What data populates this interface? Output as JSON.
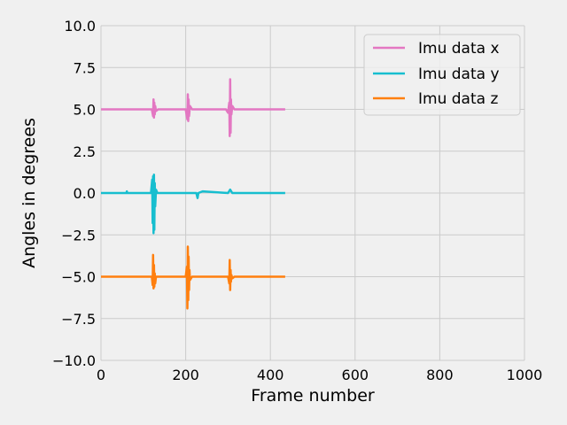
{
  "chart_data": {
    "type": "line",
    "xlabel": "Frame number",
    "ylabel": "Angles in degrees",
    "xlim": [
      0,
      1000
    ],
    "ylim": [
      -10,
      10
    ],
    "xticks": [
      0,
      200,
      400,
      600,
      800,
      1000
    ],
    "yticks": [
      -10.0,
      -7.5,
      -5.0,
      -2.5,
      0.0,
      2.5,
      5.0,
      7.5,
      10.0
    ],
    "xtick_labels": [
      "0",
      "200",
      "400",
      "600",
      "800",
      "1000"
    ],
    "ytick_labels": [
      "−10.0",
      "−7.5",
      "−5.0",
      "−2.5",
      "0.0",
      "2.5",
      "5.0",
      "7.5",
      "10.0"
    ],
    "grid": true,
    "legend_position": "top-right",
    "series": [
      {
        "name": "Imu data x",
        "color": "#e377c2",
        "x": [
          0,
          120,
          123,
          124,
          125,
          126,
          127,
          128,
          130,
          135,
          150,
          200,
          204,
          205,
          206,
          207,
          208,
          210,
          215,
          250,
          295,
          300,
          303,
          304,
          305,
          306,
          307,
          308,
          310,
          315,
          380,
          435
        ],
        "y": [
          5.0,
          5.0,
          4.6,
          5.6,
          4.5,
          5.4,
          4.7,
          5.2,
          4.9,
          5.0,
          5.0,
          5.0,
          4.4,
          5.9,
          4.3,
          5.6,
          4.6,
          5.2,
          5.0,
          5.0,
          5.0,
          4.8,
          5.4,
          3.4,
          6.8,
          3.6,
          5.6,
          4.7,
          5.2,
          5.0,
          5.0,
          5.0
        ]
      },
      {
        "name": "Imu data y",
        "color": "#17becf",
        "x": [
          0,
          60,
          61,
          62,
          100,
          118,
          121,
          122,
          123,
          124,
          125,
          126,
          127,
          128,
          130,
          133,
          140,
          200,
          225,
          228,
          230,
          240,
          300,
          305,
          310,
          435
        ],
        "y": [
          0.0,
          0.0,
          0.1,
          0.0,
          0.0,
          0.0,
          0.8,
          -1.8,
          1.0,
          -2.4,
          1.1,
          -2.2,
          0.6,
          -0.8,
          0.2,
          0.0,
          0.0,
          0.0,
          0.0,
          -0.3,
          0.0,
          0.1,
          0.0,
          0.2,
          0.0,
          0.0
        ]
      },
      {
        "name": "Imu data z",
        "color": "#ff7f0e",
        "x": [
          0,
          120,
          122,
          123,
          124,
          125,
          126,
          127,
          128,
          130,
          135,
          200,
          203,
          204,
          205,
          206,
          207,
          208,
          209,
          210,
          215,
          290,
          300,
          303,
          304,
          305,
          306,
          307,
          308,
          310,
          315,
          380,
          435
        ],
        "y": [
          -5.0,
          -5.0,
          -5.5,
          -3.7,
          -5.7,
          -4.3,
          -5.6,
          -4.8,
          -5.4,
          -5.0,
          -5.0,
          -5.0,
          -4.4,
          -6.9,
          -3.2,
          -6.4,
          -3.8,
          -5.8,
          -4.6,
          -5.2,
          -5.0,
          -5.0,
          -5.0,
          -5.4,
          -4.0,
          -5.8,
          -4.6,
          -5.3,
          -4.9,
          -5.1,
          -5.0,
          -5.0,
          -5.0
        ]
      }
    ]
  }
}
